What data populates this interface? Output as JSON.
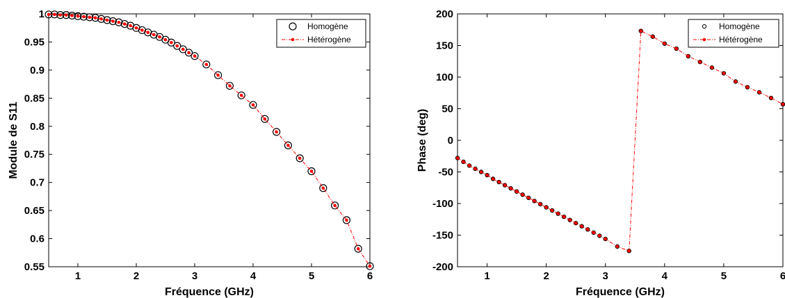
{
  "chart_data": [
    {
      "type": "line",
      "xlabel": "Fréquence (GHz)",
      "ylabel": "Module de S11",
      "xlim": [
        0.5,
        6
      ],
      "ylim": [
        0.55,
        1
      ],
      "xticks": [
        "1",
        "2",
        "3",
        "4",
        "5",
        "6"
      ],
      "yticks": [
        "0.55",
        "0.6",
        "0.65",
        "0.7",
        "0.75",
        "0.8",
        "0.85",
        "0.9",
        "0.95",
        "1"
      ],
      "grid": false,
      "legend_position": "top-right",
      "series": [
        {
          "name": "Homogène",
          "style": "open-circle-markers",
          "color": "#000000",
          "x": [
            0.5,
            0.6,
            0.7,
            0.8,
            0.9,
            1.0,
            1.1,
            1.2,
            1.3,
            1.4,
            1.5,
            1.6,
            1.7,
            1.8,
            1.9,
            2.0,
            2.1,
            2.2,
            2.3,
            2.4,
            2.5,
            2.6,
            2.7,
            2.8,
            2.9,
            3.0,
            3.2,
            3.4,
            3.6,
            3.8,
            4.0,
            4.2,
            4.4,
            4.6,
            4.8,
            5.0,
            5.2,
            5.4,
            5.6,
            5.8,
            6.0
          ],
          "y": [
            0.999,
            0.999,
            0.998,
            0.998,
            0.997,
            0.996,
            0.995,
            0.994,
            0.993,
            0.991,
            0.989,
            0.987,
            0.985,
            0.982,
            0.979,
            0.975,
            0.971,
            0.967,
            0.963,
            0.959,
            0.954,
            0.949,
            0.943,
            0.937,
            0.931,
            0.925,
            0.91,
            0.891,
            0.872,
            0.855,
            0.838,
            0.813,
            0.79,
            0.766,
            0.743,
            0.72,
            0.69,
            0.659,
            0.633,
            0.582,
            0.551
          ]
        },
        {
          "name": "Hétérogène",
          "style": "dash-dot line with filled dot markers",
          "color": "#ff0000",
          "x": [
            0.5,
            0.6,
            0.7,
            0.8,
            0.9,
            1.0,
            1.1,
            1.2,
            1.3,
            1.4,
            1.5,
            1.6,
            1.7,
            1.8,
            1.9,
            2.0,
            2.1,
            2.2,
            2.3,
            2.4,
            2.5,
            2.6,
            2.7,
            2.8,
            2.9,
            3.0,
            3.2,
            3.4,
            3.6,
            3.8,
            4.0,
            4.2,
            4.4,
            4.6,
            4.8,
            5.0,
            5.2,
            5.4,
            5.6,
            5.8,
            6.0
          ],
          "y": [
            0.999,
            0.999,
            0.998,
            0.998,
            0.997,
            0.996,
            0.995,
            0.994,
            0.993,
            0.991,
            0.989,
            0.987,
            0.985,
            0.982,
            0.979,
            0.975,
            0.971,
            0.967,
            0.963,
            0.959,
            0.954,
            0.949,
            0.943,
            0.937,
            0.931,
            0.925,
            0.91,
            0.891,
            0.872,
            0.855,
            0.838,
            0.813,
            0.79,
            0.766,
            0.743,
            0.72,
            0.69,
            0.659,
            0.633,
            0.582,
            0.551
          ]
        }
      ]
    },
    {
      "type": "line",
      "xlabel": "Fréquence (GHz)",
      "ylabel": "Phase (deg)",
      "xlim": [
        0.5,
        6
      ],
      "ylim": [
        -200,
        200
      ],
      "xticks": [
        "1",
        "2",
        "3",
        "4",
        "5",
        "6"
      ],
      "yticks": [
        "-200",
        "-150",
        "-100",
        "-50",
        "0",
        "50",
        "100",
        "150",
        "200"
      ],
      "grid": false,
      "legend_position": "top-right",
      "series": [
        {
          "name": "Homogène",
          "style": "open-circle-markers",
          "color": "#000000",
          "x": [
            0.5,
            0.6,
            0.7,
            0.8,
            0.9,
            1.0,
            1.1,
            1.2,
            1.3,
            1.4,
            1.5,
            1.6,
            1.7,
            1.8,
            1.9,
            2.0,
            2.1,
            2.2,
            2.3,
            2.4,
            2.5,
            2.6,
            2.7,
            2.8,
            2.9,
            3.0,
            3.2,
            3.4,
            3.6,
            3.8,
            4.0,
            4.2,
            4.4,
            4.6,
            4.8,
            5.0,
            5.2,
            5.4,
            5.6,
            5.8,
            6.0
          ],
          "y": [
            -28,
            -34,
            -40,
            -45,
            -50,
            -55,
            -61,
            -66,
            -71,
            -76,
            -81,
            -86,
            -91,
            -96,
            -101,
            -106,
            -111,
            -116,
            -121,
            -126,
            -131,
            -136,
            -141,
            -146,
            -151,
            -156,
            -168,
            -175,
            173,
            164,
            153,
            145,
            133,
            124,
            115,
            106,
            93,
            84,
            76,
            67,
            57
          ]
        },
        {
          "name": "Hétérogène",
          "style": "dash-dot line with filled dot markers",
          "color": "#ff0000",
          "x": [
            0.5,
            0.6,
            0.7,
            0.8,
            0.9,
            1.0,
            1.1,
            1.2,
            1.3,
            1.4,
            1.5,
            1.6,
            1.7,
            1.8,
            1.9,
            2.0,
            2.1,
            2.2,
            2.3,
            2.4,
            2.5,
            2.6,
            2.7,
            2.8,
            2.9,
            3.0,
            3.2,
            3.4,
            3.6,
            3.8,
            4.0,
            4.2,
            4.4,
            4.6,
            4.8,
            5.0,
            5.2,
            5.4,
            5.6,
            5.8,
            6.0
          ],
          "y": [
            -28,
            -34,
            -40,
            -45,
            -50,
            -55,
            -61,
            -66,
            -71,
            -76,
            -81,
            -86,
            -91,
            -96,
            -101,
            -106,
            -111,
            -116,
            -121,
            -126,
            -131,
            -136,
            -141,
            -146,
            -151,
            -156,
            -168,
            -175,
            173,
            164,
            153,
            145,
            133,
            124,
            115,
            106,
            93,
            84,
            76,
            67,
            57
          ]
        }
      ]
    }
  ]
}
